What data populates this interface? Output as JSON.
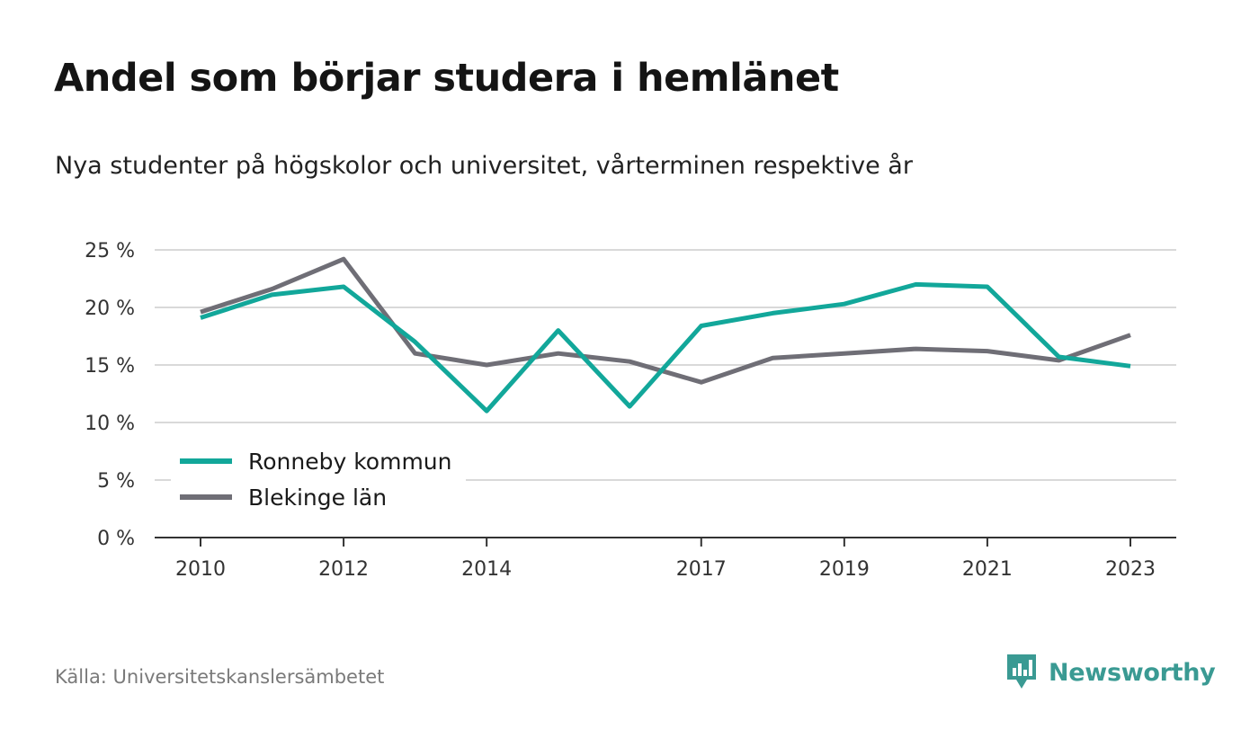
{
  "colors": {
    "ronneby": "#12a79a",
    "blekinge": "#6f6e76",
    "grid": "#d9d9d9",
    "axis": "#333333",
    "brand": "#3a9a93"
  },
  "chart_data": {
    "type": "line",
    "title": "Andel som börjar studera i hemlänet",
    "subtitle": "Nya studenter på högskolor och universitet, vårterminen respektive år",
    "x": [
      2010,
      2011,
      2012,
      2013,
      2014,
      2015,
      2016,
      2017,
      2018,
      2019,
      2020,
      2021,
      2022,
      2023
    ],
    "x_tick_labels": [
      "2010",
      "2012",
      "2014",
      "2017",
      "2019",
      "2021",
      "2023"
    ],
    "y_tick_labels": [
      "0 %",
      "5 %",
      "10 %",
      "15 %",
      "20 %",
      "25 %"
    ],
    "y_ticks": [
      0,
      5,
      10,
      15,
      20,
      25
    ],
    "ylim": [
      0,
      25
    ],
    "xlim": [
      2010,
      2023
    ],
    "grid": true,
    "legend_position": "bottom-left",
    "series": [
      {
        "name": "Ronneby kommun",
        "color": "#12a79a",
        "values": [
          19.1,
          21.1,
          21.8,
          17.0,
          11.0,
          18.0,
          11.4,
          18.4,
          19.5,
          20.3,
          22.0,
          21.8,
          15.7,
          14.9
        ]
      },
      {
        "name": "Blekinge län",
        "color": "#6f6e76",
        "values": [
          19.6,
          21.6,
          24.2,
          16.0,
          15.0,
          16.0,
          15.3,
          13.5,
          15.6,
          16.0,
          16.4,
          16.2,
          15.4,
          17.6
        ]
      }
    ]
  },
  "source": "Källa: Universitetskanslersämbetet",
  "brand": {
    "name": "Newsworthy",
    "icon": "newsworthy-logo-icon"
  }
}
